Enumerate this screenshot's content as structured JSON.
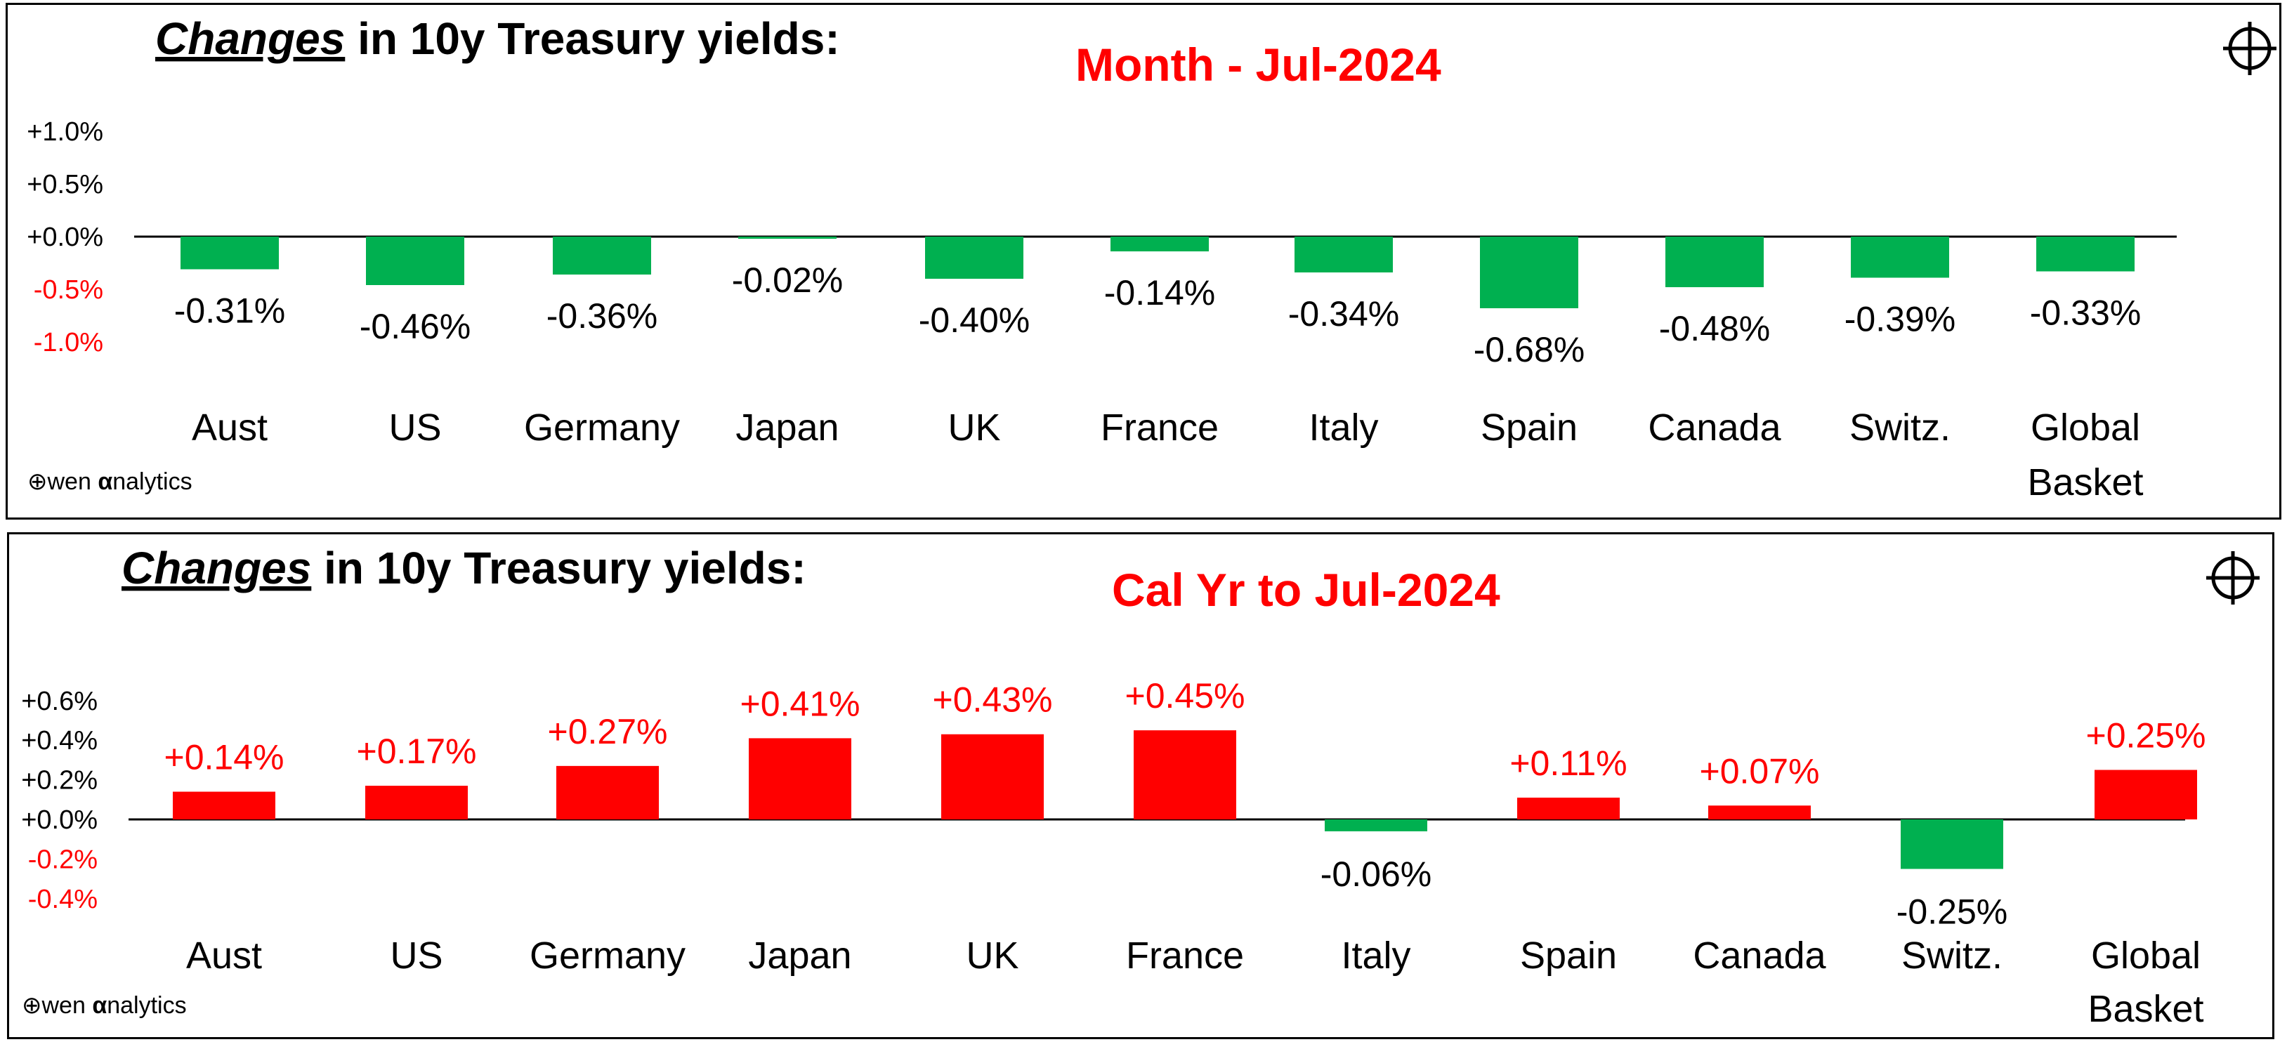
{
  "charts": [
    {
      "title_emph": "Changes",
      "title_rest": " in 10y Treasury yields:",
      "subtitle": "Month -  Jul-2024",
      "brand": {
        "symbol": "⊕",
        "text": "wen ",
        "alpha": "α",
        "rest": "nalytics"
      },
      "colors": {
        "positive": "#ff0000",
        "negative": "#00b050",
        "neg_tick": "#ff0000"
      },
      "chart_data": {
        "type": "bar",
        "title": "Changes in 10y Treasury yields:",
        "subtitle": "Month -  Jul-2024",
        "categories": [
          "Aust",
          "US",
          "Germany",
          "Japan",
          "UK",
          "France",
          "Italy",
          "Spain",
          "Canada",
          "Switz.",
          "Global Basket"
        ],
        "values": [
          -0.31,
          -0.46,
          -0.36,
          -0.02,
          -0.4,
          -0.14,
          -0.34,
          -0.68,
          -0.48,
          -0.39,
          -0.33
        ],
        "data_labels": [
          "-0.31%",
          "-0.46%",
          "-0.36%",
          "-0.02%",
          "-0.40%",
          "-0.14%",
          "-0.34%",
          "-0.68%",
          "-0.48%",
          "-0.39%",
          "-0.33%"
        ],
        "yticks": [
          1.0,
          0.5,
          0.0,
          -0.5,
          -1.0
        ],
        "ytick_labels": [
          "+1.0%",
          "+0.5%",
          "+0.0%",
          "-0.5%",
          "-1.0%"
        ],
        "ylim": [
          -1.0,
          1.0
        ],
        "grid": false
      }
    },
    {
      "title_emph": "Changes",
      "title_rest": " in 10y Treasury yields:",
      "subtitle": "Cal Yr to  Jul-2024",
      "brand": {
        "symbol": "⊕",
        "text": "wen ",
        "alpha": "α",
        "rest": "nalytics"
      },
      "colors": {
        "positive": "#ff0000",
        "negative": "#00b050",
        "neg_tick": "#ff0000"
      },
      "chart_data": {
        "type": "bar",
        "title": "Changes in 10y Treasury yields:",
        "subtitle": "Cal Yr to  Jul-2024",
        "categories": [
          "Aust",
          "US",
          "Germany",
          "Japan",
          "UK",
          "France",
          "Italy",
          "Spain",
          "Canada",
          "Switz.",
          "Global Basket"
        ],
        "values": [
          0.14,
          0.17,
          0.27,
          0.41,
          0.43,
          0.45,
          -0.06,
          0.11,
          0.07,
          -0.25,
          0.25
        ],
        "data_labels": [
          "+0.14%",
          "+0.17%",
          "+0.27%",
          "+0.41%",
          "+0.43%",
          "+0.45%",
          "-0.06%",
          "+0.11%",
          "+0.07%",
          "-0.25%",
          "+0.25%"
        ],
        "yticks": [
          0.6,
          0.4,
          0.2,
          0.0,
          -0.2,
          -0.4
        ],
        "ytick_labels": [
          "+0.6%",
          "+0.4%",
          "+0.2%",
          "+0.0%",
          "-0.2%",
          "-0.4%"
        ],
        "ylim": [
          -0.4,
          0.6
        ],
        "grid": false
      }
    }
  ]
}
